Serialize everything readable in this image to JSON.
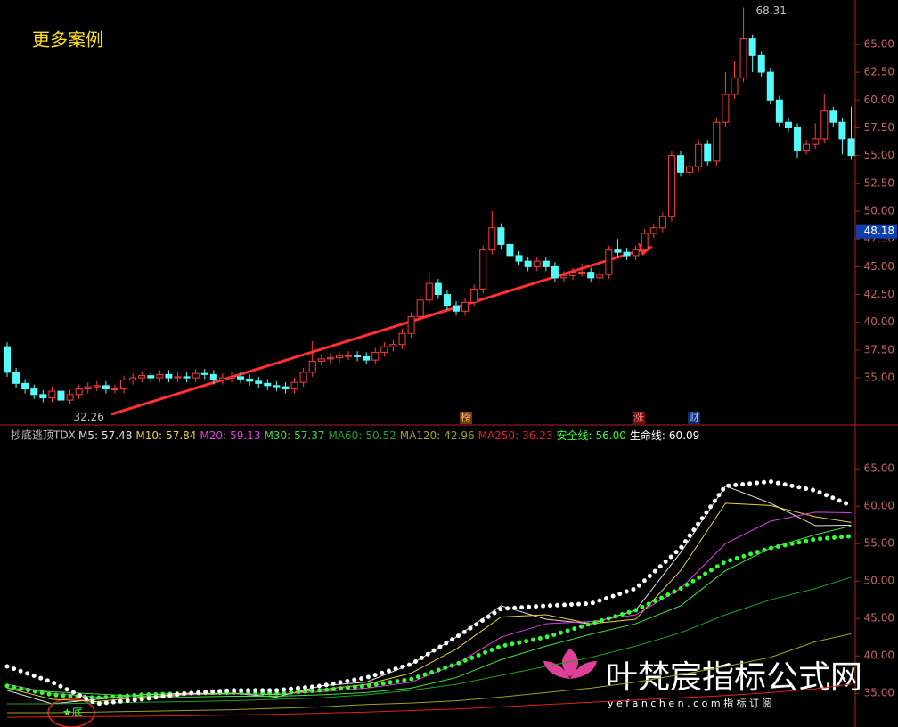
{
  "chart_data": [
    {
      "type": "candlestick",
      "title": "更多案例",
      "open": [
        37.8,
        35.5,
        34.5,
        34.0,
        33.5,
        33.2,
        33.8,
        33.0,
        33.5,
        34.0,
        34.2,
        34.3,
        34.0,
        34.0,
        34.8,
        35.0,
        35.2,
        35.0,
        35.3,
        35.0,
        35.1,
        35.0,
        35.4,
        35.3,
        34.8,
        35.0,
        35.1,
        34.9,
        34.7,
        34.5,
        34.3,
        34.2,
        34.0,
        34.6,
        35.5,
        36.5,
        36.7,
        36.8,
        37.0,
        37.0,
        36.9,
        36.6,
        37.3,
        37.8,
        38.0,
        39.0,
        40.5,
        42.0,
        43.5,
        42.5,
        41.5,
        41.0,
        41.8,
        43.0,
        46.5,
        48.5,
        47.0,
        46.0,
        45.5,
        45.0,
        45.5,
        45.0,
        44.0,
        44.2,
        44.5,
        44.5,
        44.0,
        44.3,
        46.5,
        46.3,
        46.0,
        46.5,
        48.0,
        48.5,
        49.5,
        55.0,
        53.5,
        54.0,
        56.0,
        54.5,
        58.0,
        60.5,
        62.0,
        65.5,
        64.0,
        62.5,
        60.0,
        58.0,
        57.5,
        55.5,
        56.0,
        56.5,
        59.0,
        58.0,
        56.5
      ],
      "high": [
        38.2,
        35.9,
        34.9,
        34.4,
        33.9,
        34.2,
        34.2,
        33.9,
        34.4,
        34.6,
        34.7,
        34.7,
        34.4,
        35.2,
        35.4,
        35.6,
        35.6,
        35.7,
        35.7,
        35.5,
        35.5,
        35.8,
        35.8,
        35.7,
        35.4,
        35.5,
        35.5,
        35.3,
        35.1,
        34.9,
        34.7,
        34.6,
        35.0,
        35.9,
        38.3,
        37.1,
        37.2,
        37.4,
        37.4,
        37.4,
        37.3,
        37.7,
        38.2,
        38.4,
        39.4,
        40.9,
        42.4,
        44.5,
        43.9,
        42.9,
        41.9,
        42.2,
        43.4,
        46.9,
        50.0,
        48.9,
        47.4,
        46.4,
        45.9,
        45.9,
        45.9,
        45.4,
        44.6,
        44.9,
        45.3,
        44.9,
        44.7,
        46.9,
        47.5,
        46.7,
        46.9,
        48.4,
        48.9,
        49.9,
        55.4,
        55.4,
        54.4,
        56.4,
        56.4,
        58.4,
        62.5,
        63.5,
        68.31,
        65.9,
        64.4,
        62.9,
        60.4,
        58.4,
        57.9,
        56.4,
        57.9,
        60.6,
        59.4,
        58.4,
        59.4
      ],
      "low": [
        35.1,
        34.1,
        33.6,
        33.1,
        32.8,
        32.8,
        32.26,
        32.6,
        33.1,
        33.6,
        33.8,
        33.6,
        33.6,
        33.6,
        34.4,
        34.6,
        34.6,
        34.6,
        34.6,
        34.6,
        34.6,
        34.6,
        34.9,
        34.4,
        34.4,
        34.6,
        34.5,
        34.3,
        34.1,
        33.9,
        33.8,
        33.6,
        33.6,
        34.2,
        35.1,
        36.1,
        36.3,
        36.4,
        36.6,
        36.5,
        36.2,
        36.2,
        36.9,
        37.4,
        37.6,
        38.6,
        40.1,
        41.6,
        42.1,
        41.1,
        40.6,
        40.6,
        41.4,
        42.6,
        46.1,
        46.6,
        45.6,
        45.1,
        44.6,
        44.6,
        44.6,
        43.6,
        43.6,
        43.8,
        44.1,
        43.6,
        43.6,
        43.9,
        45.9,
        45.6,
        45.6,
        46.1,
        47.6,
        48.1,
        49.1,
        53.1,
        53.1,
        53.6,
        54.1,
        54.1,
        57.6,
        60.1,
        61.6,
        62.5,
        62.1,
        59.6,
        57.6,
        57.1,
        54.8,
        55.1,
        55.6,
        56.1,
        57.6,
        55.1,
        54.6
      ],
      "close": [
        35.5,
        34.5,
        34.0,
        33.5,
        33.2,
        33.8,
        33.0,
        33.5,
        34.0,
        34.2,
        34.3,
        34.0,
        34.0,
        34.8,
        35.0,
        35.2,
        35.0,
        35.3,
        35.0,
        35.1,
        35.0,
        35.4,
        35.3,
        34.8,
        35.0,
        35.1,
        34.9,
        34.7,
        34.5,
        34.3,
        34.2,
        34.0,
        34.6,
        35.5,
        36.5,
        36.7,
        36.8,
        37.0,
        37.0,
        36.9,
        36.6,
        37.3,
        37.8,
        38.0,
        39.0,
        40.5,
        42.0,
        43.5,
        42.5,
        41.5,
        41.0,
        41.8,
        43.0,
        46.5,
        48.5,
        47.0,
        46.0,
        45.5,
        45.0,
        45.5,
        45.0,
        44.0,
        44.2,
        44.5,
        44.5,
        44.0,
        44.3,
        46.5,
        46.3,
        46.0,
        46.5,
        48.0,
        48.5,
        49.5,
        55.0,
        53.5,
        54.0,
        56.0,
        54.5,
        58.0,
        60.5,
        62.0,
        65.5,
        64.0,
        62.5,
        60.0,
        58.0,
        57.5,
        55.5,
        56.0,
        56.5,
        59.0,
        58.0,
        56.5,
        55.0
      ],
      "up_color": "#ff3c3c",
      "down_color": "#54fcfc",
      "price_marker": 48.18,
      "markers": [
        "榜",
        "涨",
        "财"
      ],
      "ylim": [
        31,
        69
      ],
      "yticks": [
        {
          "value": 35,
          "label": "35.00"
        },
        {
          "value": 37.5,
          "label": "37.50"
        },
        {
          "value": 40,
          "label": "40.00"
        },
        {
          "value": 42.5,
          "label": "42.50"
        },
        {
          "value": 45,
          "label": "45.00"
        },
        {
          "value": 47.5,
          "label": "47.50"
        },
        {
          "value": 50,
          "label": "50.00"
        },
        {
          "value": 52.5,
          "label": "52.50"
        },
        {
          "value": 55,
          "label": "55.00"
        },
        {
          "value": 57.5,
          "label": "57.50"
        },
        {
          "value": 60,
          "label": "60.00"
        },
        {
          "value": 62.5,
          "label": "62.50"
        },
        {
          "value": 65,
          "label": "65.00"
        }
      ]
    },
    {
      "type": "line",
      "title": "抄底逃顶TDX",
      "annotation": "★底",
      "x": [
        0,
        5,
        10,
        15,
        20,
        25,
        30,
        35,
        40,
        45,
        50,
        55,
        60,
        65,
        70,
        75,
        80,
        85,
        90,
        94
      ],
      "series": [
        {
          "name": "M5:",
          "value_label": "57.48",
          "color": "#e0e0e0",
          "style": "line",
          "values": [
            35.4,
            33.6,
            34.2,
            34.8,
            35.0,
            35.0,
            34.5,
            36.0,
            36.5,
            38.9,
            42.5,
            46.7,
            44.9,
            44.3,
            46.1,
            53.8,
            62.7,
            60.4,
            57.4,
            57.48
          ]
        },
        {
          "name": "M10:",
          "value_label": "57.84",
          "color": "#e8d040",
          "style": "line",
          "values": [
            35.7,
            34.2,
            33.9,
            34.5,
            34.9,
            35.0,
            34.8,
            35.5,
            36.2,
            37.7,
            40.9,
            45.2,
            45.5,
            44.3,
            44.9,
            51.4,
            60.4,
            60.1,
            58.6,
            57.84
          ]
        },
        {
          "name": "M20:",
          "value_label": "59.13",
          "color": "#e040e0",
          "style": "line",
          "values": [
            36.2,
            35.0,
            34.5,
            34.3,
            34.8,
            34.9,
            34.9,
            35.2,
            35.7,
            36.5,
            38.9,
            42.5,
            44.3,
            44.6,
            45.5,
            49.0,
            55.0,
            58.0,
            59.2,
            59.13
          ]
        },
        {
          "name": "M30:",
          "value_label": "57.37",
          "color": "#40e040",
          "style": "line",
          "values": [
            35.7,
            35.2,
            34.9,
            34.6,
            34.5,
            34.6,
            34.6,
            34.8,
            35.1,
            35.7,
            37.1,
            39.5,
            41.3,
            42.9,
            44.3,
            46.7,
            51.4,
            54.4,
            56.2,
            57.37
          ]
        },
        {
          "name": "MA60:",
          "value_label": "50.52",
          "color": "#22a022",
          "style": "line",
          "values": [
            33.6,
            33.6,
            33.7,
            33.8,
            33.9,
            34.0,
            34.2,
            34.4,
            34.8,
            35.4,
            36.2,
            37.4,
            38.6,
            39.8,
            41.3,
            43.1,
            45.5,
            47.5,
            49.0,
            50.52
          ]
        },
        {
          "name": "MA120:",
          "value_label": "42.96",
          "color": "#a0a020",
          "style": "line",
          "values": [
            32.4,
            32.4,
            32.5,
            32.6,
            32.7,
            32.8,
            33.0,
            33.2,
            33.5,
            33.7,
            34.0,
            34.5,
            35.1,
            35.7,
            36.5,
            37.5,
            38.6,
            39.8,
            41.9,
            42.96
          ]
        },
        {
          "name": "MA250:",
          "value_label": "36.23",
          "color": "#e02020",
          "style": "line",
          "values": [
            31.8,
            31.85,
            31.9,
            31.95,
            32.0,
            32.1,
            32.2,
            32.35,
            32.5,
            32.7,
            32.9,
            33.2,
            33.5,
            33.8,
            34.1,
            34.4,
            34.7,
            35.1,
            35.6,
            36.23
          ]
        },
        {
          "name": "安全线:",
          "value_label": "56.00",
          "color": "#30ff30",
          "style": "dots",
          "values": [
            36.0,
            34.8,
            34.4,
            34.8,
            35.0,
            35.1,
            35.0,
            35.4,
            36.0,
            36.9,
            38.9,
            41.3,
            42.5,
            44.3,
            46.1,
            49.0,
            52.6,
            54.4,
            55.6,
            56.0
          ]
        },
        {
          "name": "生命线:",
          "value_label": "60.09",
          "color": "#ffffff",
          "style": "dots",
          "values": [
            38.6,
            36.5,
            33.6,
            34.2,
            35.0,
            35.4,
            35.4,
            36.0,
            37.1,
            38.9,
            42.5,
            46.3,
            46.7,
            47.0,
            49.0,
            54.4,
            62.7,
            63.3,
            62.1,
            60.09
          ]
        }
      ],
      "ylim": [
        30.5,
        70.5
      ],
      "yticks": [
        {
          "value": 35,
          "label": "35.00"
        },
        {
          "value": 40,
          "label": "40.00"
        },
        {
          "value": 45,
          "label": "45.00"
        },
        {
          "value": 50,
          "label": "50.00"
        },
        {
          "value": 55,
          "label": "55.00"
        },
        {
          "value": 60,
          "label": "60.00"
        },
        {
          "value": 65,
          "label": "65.00"
        }
      ]
    }
  ],
  "watermark": {
    "title": "叶梵宸指标公式网",
    "subtitle": "y e f a n c h e n . c o m   指 标 订 阅"
  }
}
